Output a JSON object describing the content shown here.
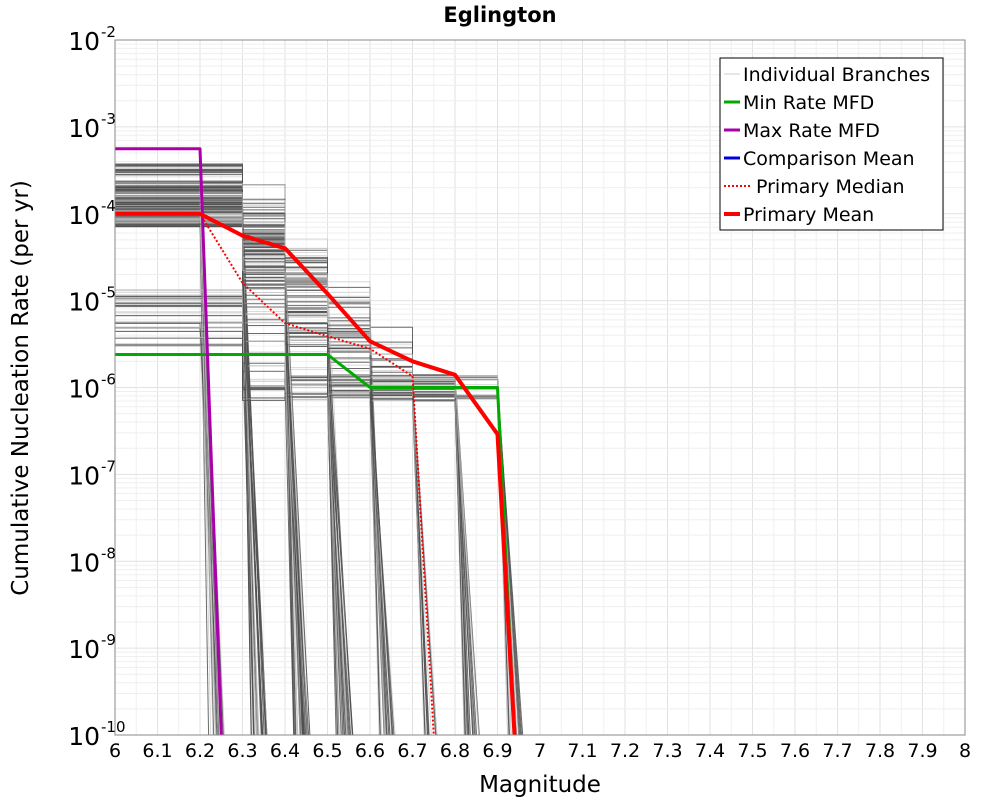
{
  "chart_data": {
    "type": "line",
    "title": "Eglington",
    "xlabel": "Magnitude",
    "ylabel": "Cumulative Nucleation Rate (per yr)",
    "xlim": [
      6,
      8
    ],
    "ylim": [
      1e-10,
      0.01
    ],
    "yscale": "log",
    "grid": true,
    "legend_position": "top-right",
    "x_ticks": [
      "6",
      "6.1",
      "6.2",
      "6.3",
      "6.4",
      "6.5",
      "6.6",
      "6.7",
      "6.8",
      "6.9",
      "7",
      "7.1",
      "7.2",
      "7.3",
      "7.4",
      "7.5",
      "7.6",
      "7.7",
      "7.8",
      "7.9",
      "8"
    ],
    "y_ticks": [
      {
        "value": 0.01,
        "base": "10",
        "exp": "-2"
      },
      {
        "value": 0.001,
        "base": "10",
        "exp": "-3"
      },
      {
        "value": 0.0001,
        "base": "10",
        "exp": "-4"
      },
      {
        "value": 1e-05,
        "base": "10",
        "exp": "-5"
      },
      {
        "value": 1e-06,
        "base": "10",
        "exp": "-6"
      },
      {
        "value": 1e-07,
        "base": "10",
        "exp": "-7"
      },
      {
        "value": 1e-08,
        "base": "10",
        "exp": "-8"
      },
      {
        "value": 1e-09,
        "base": "10",
        "exp": "-9"
      },
      {
        "value": 1e-10,
        "base": "10",
        "exp": "-10"
      }
    ],
    "branch_cutoffs": [
      6.2,
      6.3,
      6.4,
      6.5,
      6.6,
      6.7,
      6.8,
      6.9
    ],
    "series": [
      {
        "name": "Individual Branches",
        "color": "#cccccc",
        "style": "thin",
        "legend_key": "branches",
        "x": [],
        "y": []
      },
      {
        "name": "Min Rate MFD",
        "color": "#00aa00",
        "style": "solid",
        "legend_key": "min",
        "x": [
          6.0,
          6.5,
          6.6,
          6.9,
          6.94
        ],
        "y": [
          2.4e-06,
          2.4e-06,
          1e-06,
          1e-06,
          1e-10
        ]
      },
      {
        "name": "Max Rate MFD",
        "color": "#aa00aa",
        "style": "solid",
        "legend_key": "max",
        "x": [
          6.0,
          6.2,
          6.25
        ],
        "y": [
          0.00056,
          0.00056,
          1e-10
        ]
      },
      {
        "name": "Comparison Mean",
        "color": "#0000dd",
        "style": "solid",
        "legend_key": "comp",
        "x": [],
        "y": []
      },
      {
        "name": "Primary Median",
        "color": "#ff0000",
        "style": "dotted",
        "legend_key": "median",
        "x": [
          6.0,
          6.2,
          6.3,
          6.4,
          6.5,
          6.6,
          6.7,
          6.75
        ],
        "y": [
          0.0001,
          0.0001,
          1.6e-05,
          5.5e-06,
          3.9e-06,
          2.8e-06,
          1.35e-06,
          1e-10
        ]
      },
      {
        "name": "Primary Mean",
        "color": "#ff0000",
        "style": "thick",
        "legend_key": "mean",
        "x": [
          6.0,
          6.2,
          6.3,
          6.4,
          6.5,
          6.6,
          6.7,
          6.8,
          6.9,
          6.94
        ],
        "y": [
          0.0001,
          0.0001,
          5.6e-05,
          4e-05,
          1.2e-05,
          3.4e-06,
          2e-06,
          1.4e-06,
          2.9e-07,
          1e-10
        ]
      }
    ]
  }
}
